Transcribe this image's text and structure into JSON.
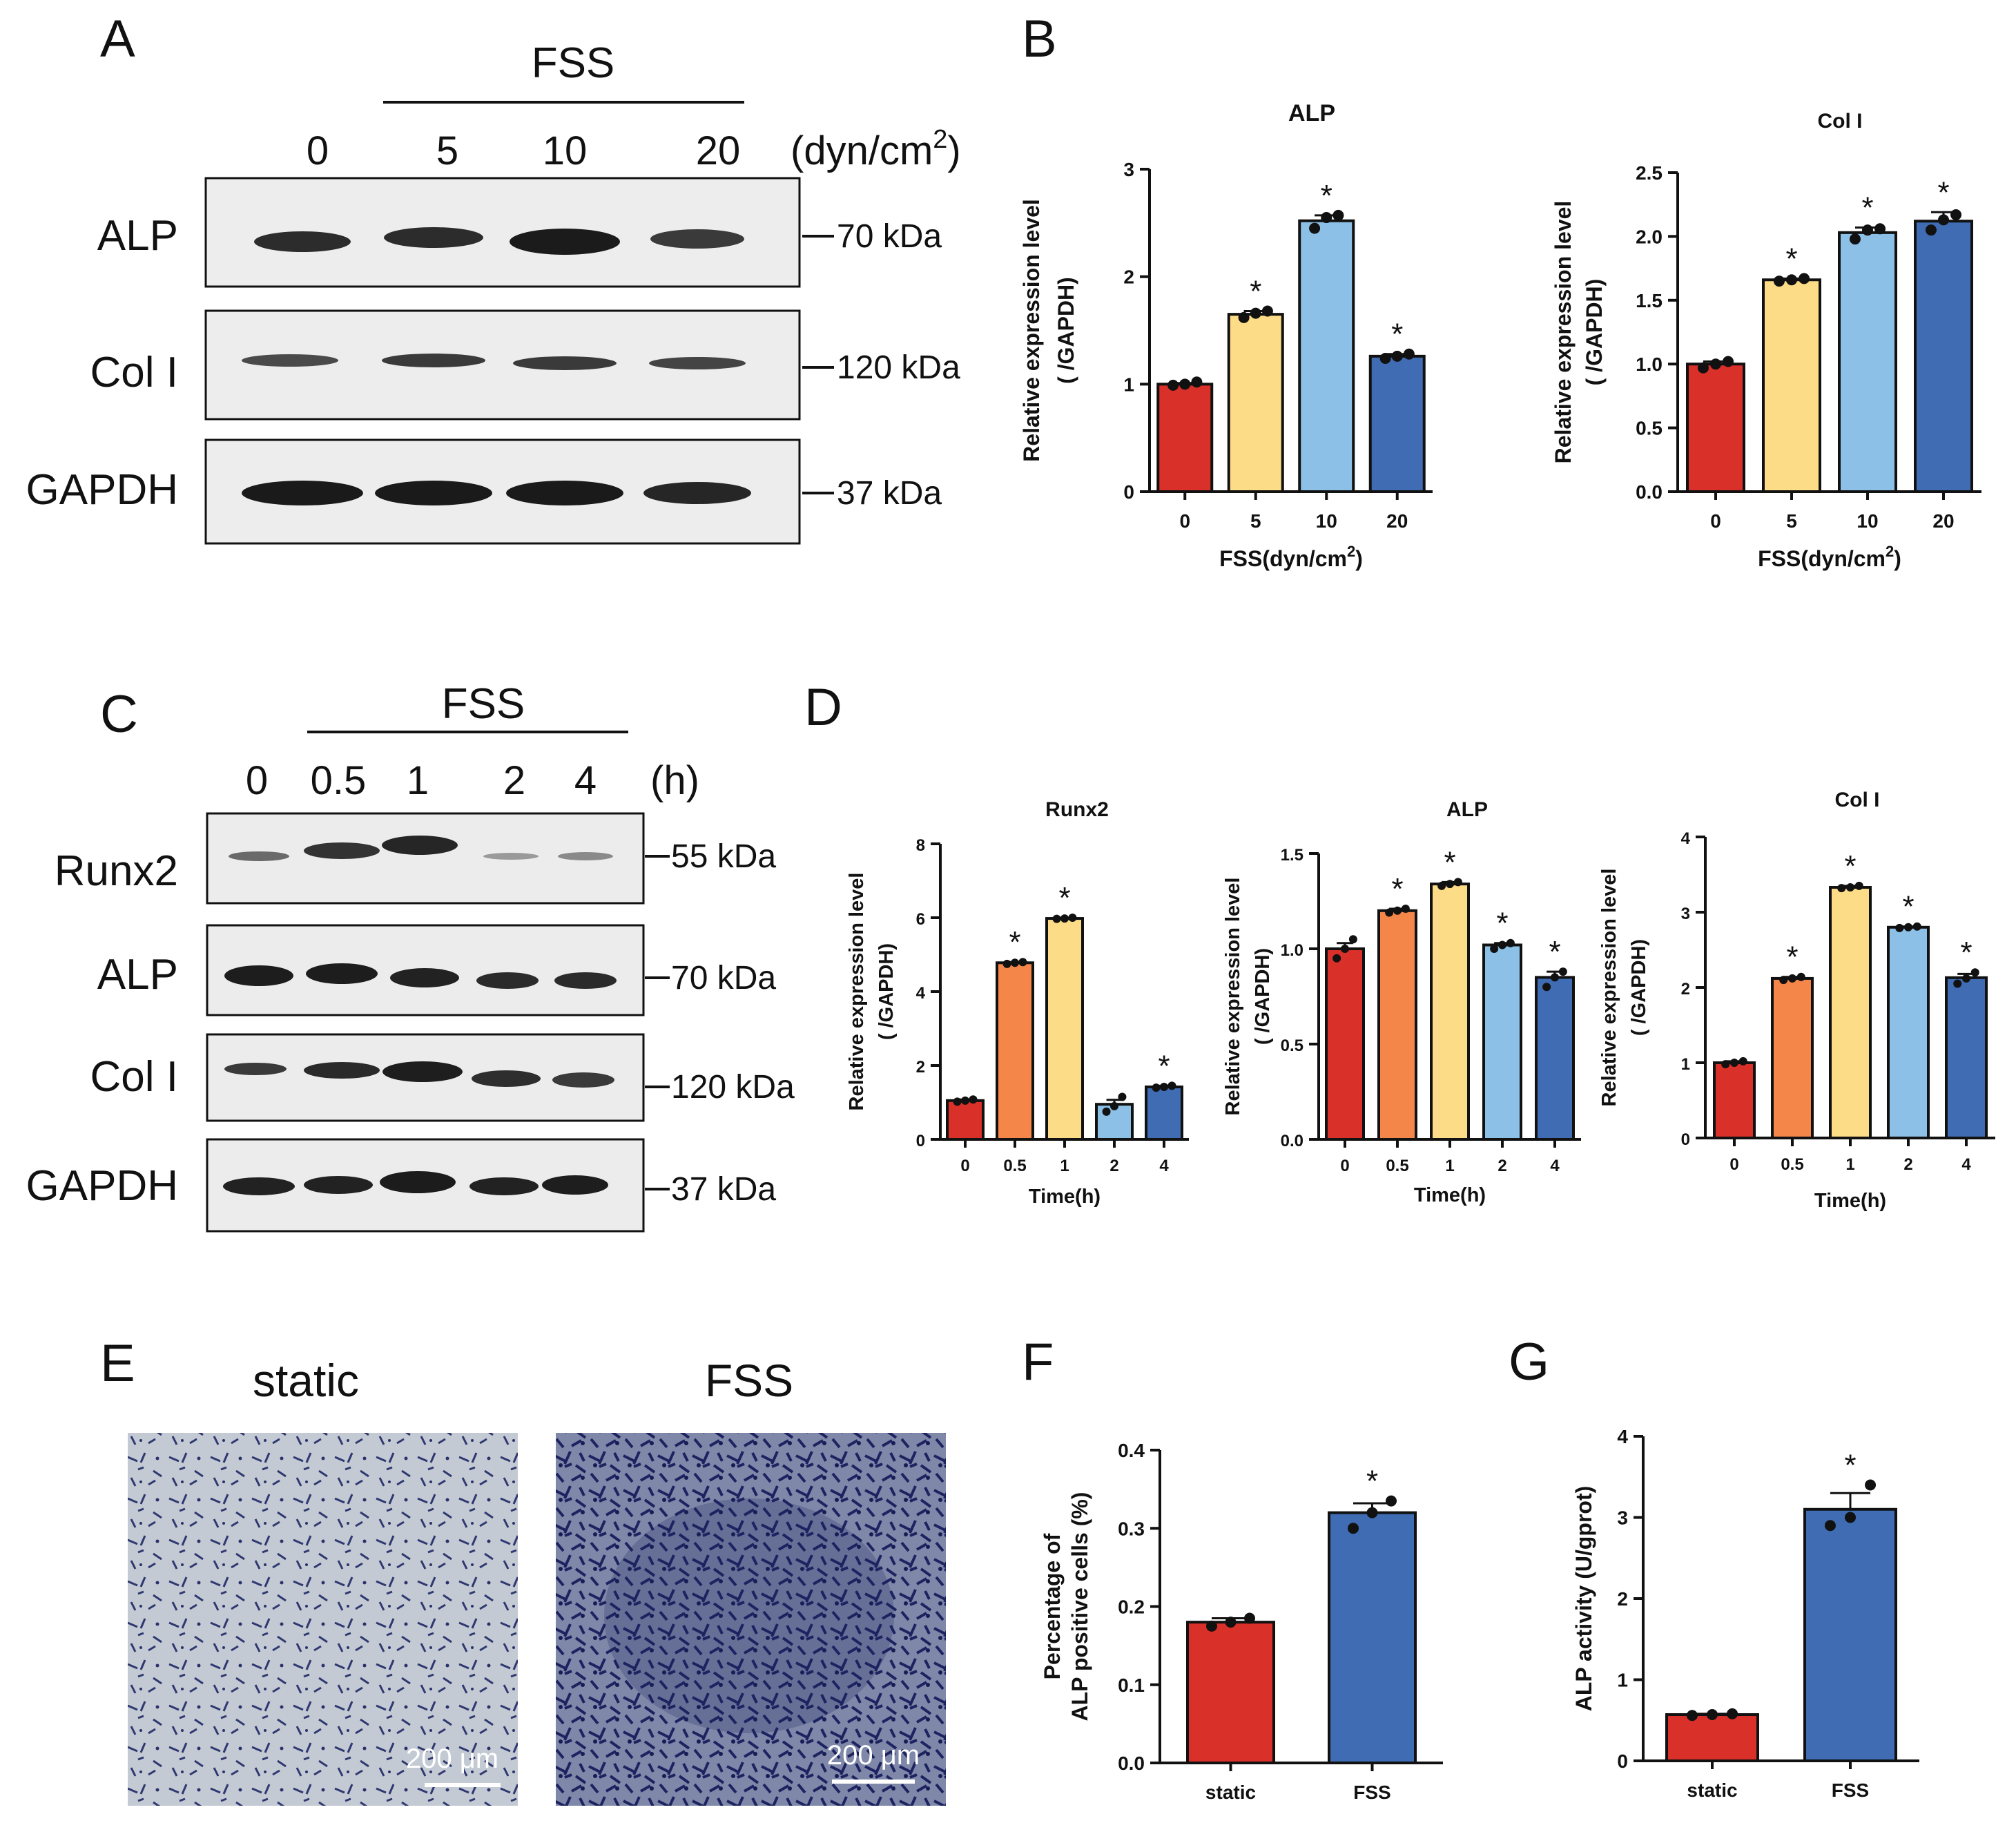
{
  "colors": {
    "red": "#d9302a",
    "orange": "#f5864a",
    "yellow": "#fddc88",
    "lightblue": "#8cc0e6",
    "blue": "#3f6cb2",
    "ink": "#111111"
  },
  "panelA": {
    "letter": "A",
    "group_label": "FSS",
    "lanes": [
      "0",
      "5",
      "10",
      "20"
    ],
    "unit_prefix": "(dyn/cm",
    "unit_sup": "2",
    "unit_suffix": ")",
    "blots": [
      {
        "name": "ALP",
        "mw": "70 kDa"
      },
      {
        "name": "Col I",
        "mw": "120 kDa"
      },
      {
        "name": "GAPDH",
        "mw": "37 kDa"
      }
    ]
  },
  "panelB": {
    "letter": "B"
  },
  "panelC": {
    "letter": "C",
    "group_label": "FSS",
    "lanes": [
      "0",
      "0.5",
      "1",
      "2",
      "4"
    ],
    "unit": "(h)",
    "blots": [
      {
        "name": "Runx2",
        "mw": "55 kDa"
      },
      {
        "name": "ALP",
        "mw": "70 kDa"
      },
      {
        "name": "Col I",
        "mw": "120 kDa"
      },
      {
        "name": "GAPDH",
        "mw": "37 kDa"
      }
    ]
  },
  "panelD": {
    "letter": "D"
  },
  "panelE": {
    "letter": "E",
    "left_caption": "static",
    "right_caption": "FSS",
    "scalebar_left": "200 μm",
    "scalebar_right": "200 μm"
  },
  "panelF": {
    "letter": "F"
  },
  "panelG": {
    "letter": "G"
  },
  "ylabel_line1": "Relative expression level",
  "ylabel_line2": "( /GAPDH)",
  "chart_data": [
    {
      "id": "B-ALP",
      "type": "bar",
      "title": "ALP",
      "categories": [
        "0",
        "5",
        "10",
        "20"
      ],
      "values": [
        1.0,
        1.65,
        2.52,
        1.26
      ],
      "points": [
        [
          0.99,
          1.0,
          1.02
        ],
        [
          1.62,
          1.66,
          1.68
        ],
        [
          2.45,
          2.55,
          2.57
        ],
        [
          1.24,
          1.26,
          1.28
        ]
      ],
      "sem": [
        0.01,
        0.03,
        0.05,
        0.02
      ],
      "significant": [
        false,
        true,
        true,
        true
      ],
      "colors": [
        "red",
        "yellow",
        "lightblue",
        "blue"
      ],
      "xlabel_prefix": "FSS(dyn/cm",
      "xlabel_sup": "2",
      "xlabel_suffix": ")",
      "ylim": [
        0,
        3
      ],
      "yticks": [
        "0",
        "1",
        "2",
        "3"
      ]
    },
    {
      "id": "B-Col",
      "type": "bar",
      "title": "Col I",
      "categories": [
        "0",
        "5",
        "10",
        "20"
      ],
      "values": [
        1.0,
        1.66,
        2.03,
        2.12
      ],
      "points": [
        [
          0.97,
          1.0,
          1.02
        ],
        [
          1.65,
          1.66,
          1.67
        ],
        [
          1.98,
          2.05,
          2.06
        ],
        [
          2.05,
          2.13,
          2.17
        ]
      ],
      "sem": [
        0.02,
        0.01,
        0.04,
        0.07
      ],
      "significant": [
        false,
        true,
        true,
        true
      ],
      "colors": [
        "red",
        "yellow",
        "lightblue",
        "blue"
      ],
      "xlabel_prefix": "FSS(dyn/cm",
      "xlabel_sup": "2",
      "xlabel_suffix": ")",
      "ylim": [
        0,
        2.5
      ],
      "yticks": [
        "0.0",
        "0.5",
        "1.0",
        "1.5",
        "2.0",
        "2.5"
      ]
    },
    {
      "id": "D-Runx2",
      "type": "bar",
      "title": "Runx2",
      "categories": [
        "0",
        "0.5",
        "1",
        "2",
        "4"
      ],
      "values": [
        1.05,
        4.78,
        5.98,
        0.95,
        1.42
      ],
      "points": [
        [
          1.02,
          1.05,
          1.08
        ],
        [
          4.75,
          4.78,
          4.8
        ],
        [
          5.97,
          5.98,
          6.0
        ],
        [
          0.75,
          0.9,
          1.15
        ],
        [
          1.4,
          1.42,
          1.45
        ]
      ],
      "sem": [
        0.03,
        0.02,
        0.02,
        0.12,
        0.03
      ],
      "significant": [
        false,
        true,
        true,
        false,
        true
      ],
      "colors": [
        "red",
        "orange",
        "yellow",
        "lightblue",
        "blue"
      ],
      "xlabel": "Time(h)",
      "ylim": [
        0,
        8
      ],
      "yticks": [
        "0",
        "2",
        "4",
        "6",
        "8"
      ]
    },
    {
      "id": "D-ALP",
      "type": "bar",
      "title": "ALP",
      "categories": [
        "0",
        "0.5",
        "1",
        "2",
        "4"
      ],
      "values": [
        1.0,
        1.2,
        1.34,
        1.02,
        0.85
      ],
      "points": [
        [
          0.95,
          1.0,
          1.05
        ],
        [
          1.19,
          1.2,
          1.21
        ],
        [
          1.33,
          1.34,
          1.35
        ],
        [
          1.0,
          1.02,
          1.03
        ],
        [
          0.8,
          0.85,
          0.88
        ]
      ],
      "sem": [
        0.03,
        0.01,
        0.01,
        0.01,
        0.03
      ],
      "significant": [
        false,
        true,
        true,
        true,
        true
      ],
      "colors": [
        "red",
        "orange",
        "yellow",
        "lightblue",
        "blue"
      ],
      "xlabel": "Time(h)",
      "ylim": [
        0,
        1.5
      ],
      "yticks": [
        "0.0",
        "0.5",
        "1.0",
        "1.5"
      ]
    },
    {
      "id": "D-Col",
      "type": "bar",
      "title": "Col I",
      "categories": [
        "0",
        "0.5",
        "1",
        "2",
        "4"
      ],
      "values": [
        1.0,
        2.12,
        3.33,
        2.8,
        2.13
      ],
      "points": [
        [
          0.98,
          1.0,
          1.02
        ],
        [
          2.1,
          2.12,
          2.14
        ],
        [
          3.32,
          3.33,
          3.35
        ],
        [
          2.79,
          2.8,
          2.81
        ],
        [
          2.05,
          2.12,
          2.2
        ]
      ],
      "sem": [
        0.02,
        0.02,
        0.02,
        0.01,
        0.05
      ],
      "significant": [
        false,
        true,
        true,
        true,
        true
      ],
      "colors": [
        "red",
        "orange",
        "yellow",
        "lightblue",
        "blue"
      ],
      "xlabel": "Time(h)",
      "ylim": [
        0,
        4
      ],
      "yticks": [
        "0",
        "1",
        "2",
        "3",
        "4"
      ]
    },
    {
      "id": "F",
      "type": "bar",
      "title": "",
      "categories": [
        "static",
        "FSS"
      ],
      "values": [
        0.18,
        0.32
      ],
      "points": [
        [
          0.175,
          0.18,
          0.185
        ],
        [
          0.3,
          0.32,
          0.335
        ]
      ],
      "sem": [
        0.005,
        0.012
      ],
      "significant": [
        false,
        true
      ],
      "colors": [
        "red",
        "blue"
      ],
      "xlabel": "",
      "ylabel_line1": "Percentage of",
      "ylabel_line2": "ALP positive cells (%)",
      "ylim": [
        0,
        0.4
      ],
      "yticks": [
        "0.0",
        "0.1",
        "0.2",
        "0.3",
        "0.4"
      ]
    },
    {
      "id": "G",
      "type": "bar",
      "title": "",
      "categories": [
        "static",
        "FSS"
      ],
      "values": [
        0.57,
        3.1
      ],
      "points": [
        [
          0.56,
          0.57,
          0.58
        ],
        [
          2.9,
          3.0,
          3.4
        ]
      ],
      "sem": [
        0.01,
        0.2
      ],
      "significant": [
        false,
        true
      ],
      "colors": [
        "red",
        "blue"
      ],
      "xlabel": "",
      "ylabel_line1": "ALP activity (U/gprot)",
      "ylim": [
        0,
        4
      ],
      "yticks": [
        "0",
        "1",
        "2",
        "3",
        "4"
      ]
    }
  ]
}
